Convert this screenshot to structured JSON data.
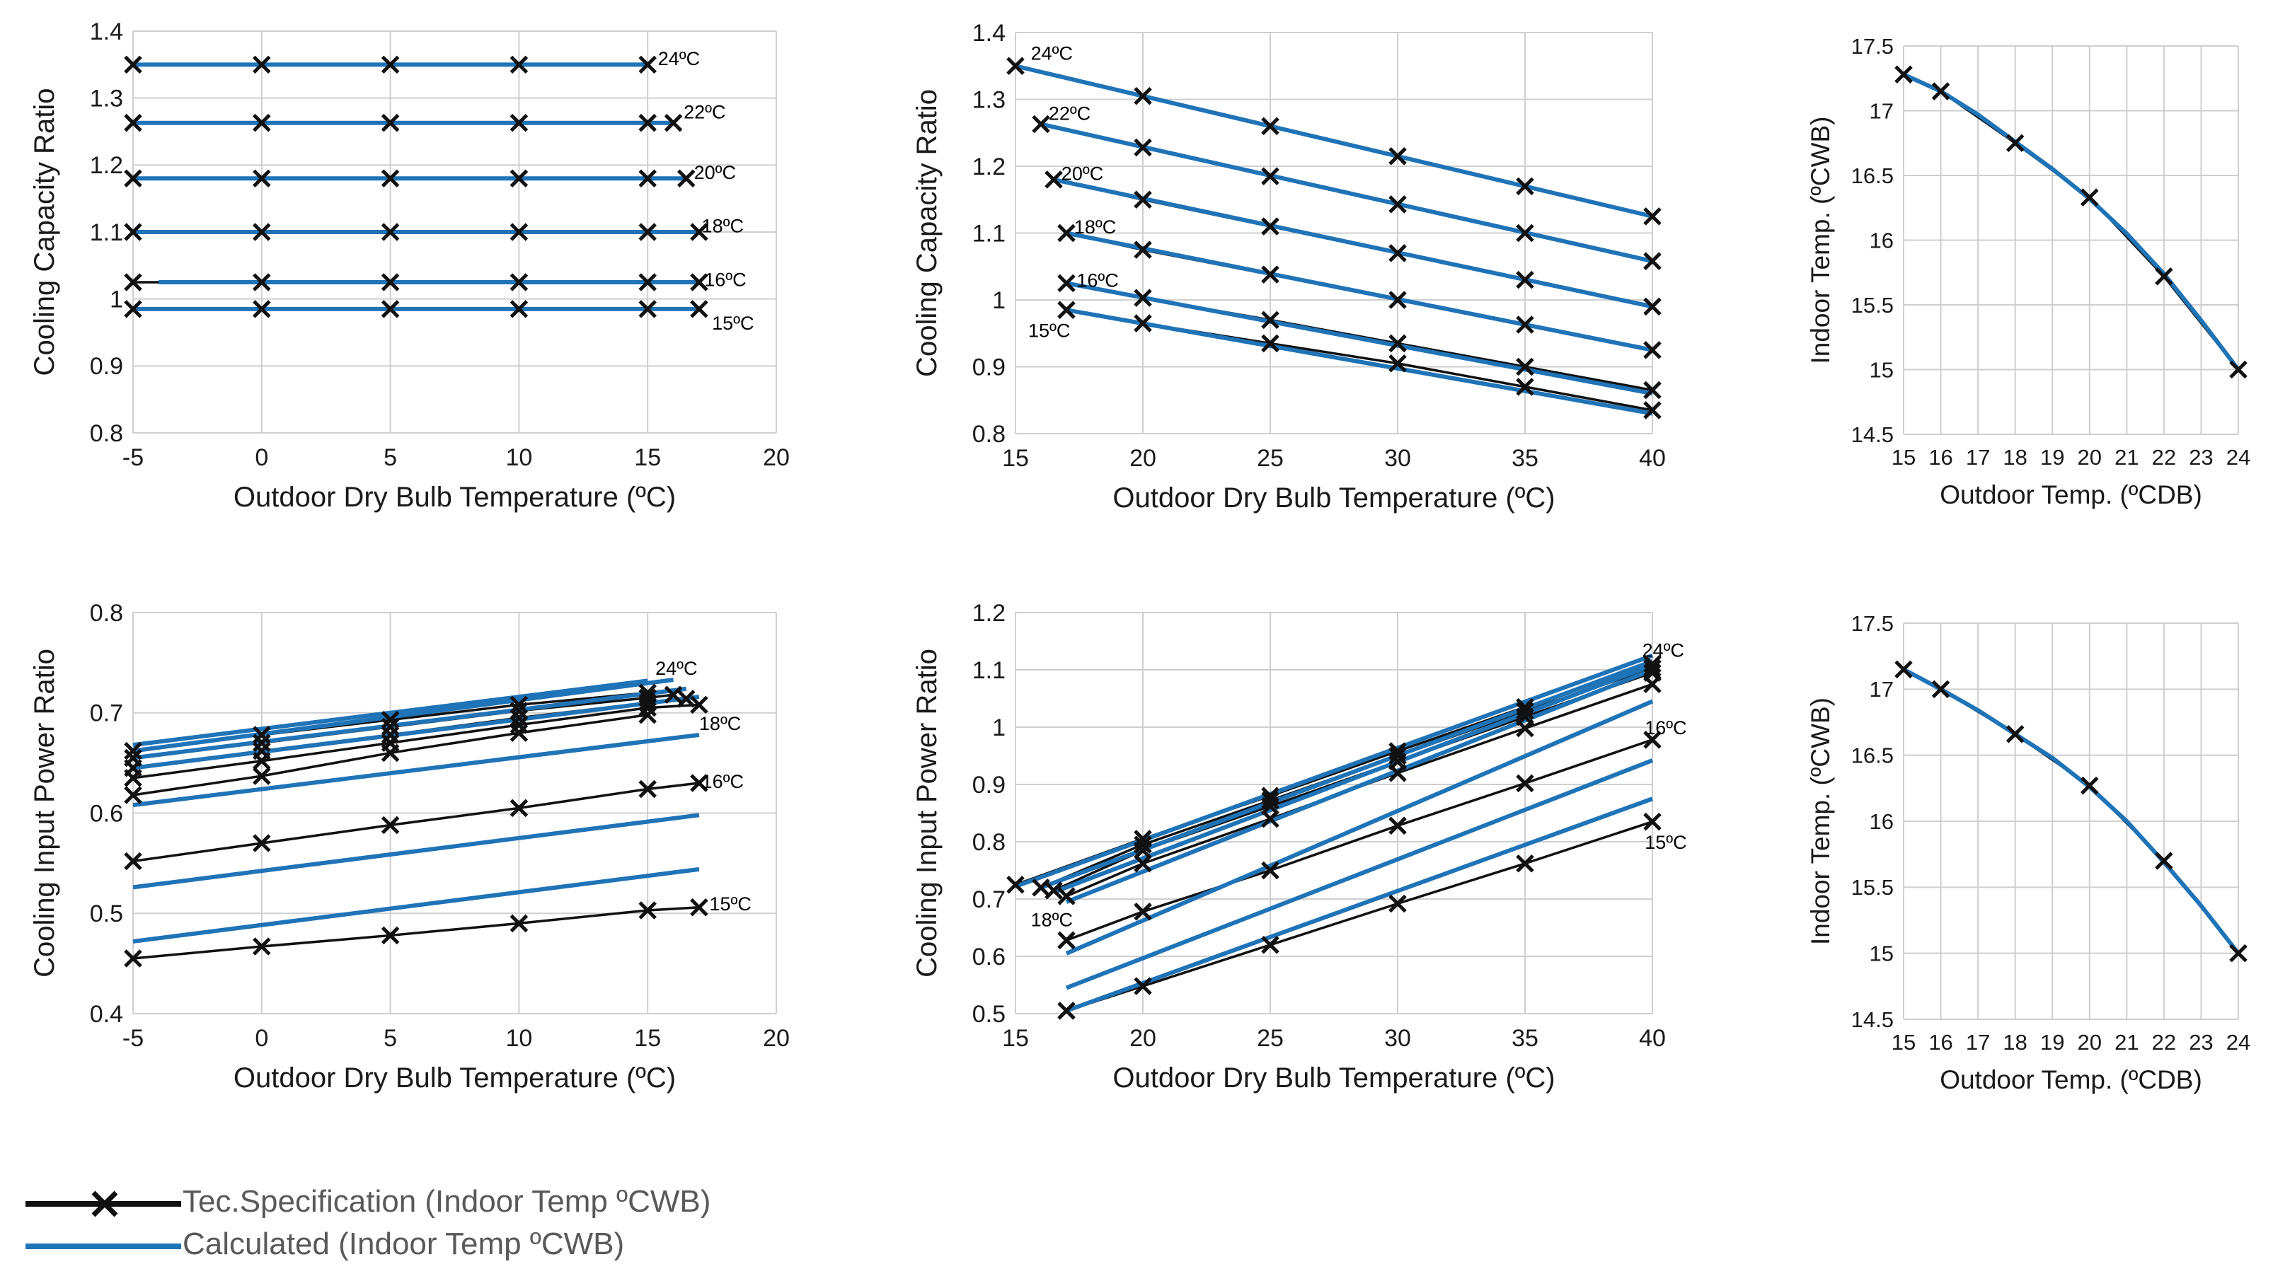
{
  "colors": {
    "spec": "#111111",
    "calc": "#1f73b7",
    "grid": "#cfcfcf"
  },
  "legend": {
    "spec_label": "Tec.Specification (Indoor Temp ºCWB)",
    "calc_label": "Calculated (Indoor Temp ºCWB)"
  },
  "chart_data": [
    {
      "id": "tl",
      "type": "line",
      "xlabel": "Outdoor Dry Bulb Temperature (ºC)",
      "ylabel": "Cooling Capacity Ratio",
      "xlim": [
        -5,
        20
      ],
      "ylim": [
        0.8,
        1.4
      ],
      "xticks": [
        -5,
        0,
        5,
        10,
        15,
        20
      ],
      "xtick_labels": [
        "-5",
        "0",
        "5",
        "10",
        "15",
        "20"
      ],
      "yticks": [
        0.8,
        0.9,
        1,
        1.1,
        1.2,
        1.3,
        1.4
      ],
      "ytick_labels": [
        "0.8",
        "0.9",
        "1",
        "1.1",
        "1.2",
        "1.3",
        "1.4"
      ],
      "grid": true,
      "spec_series": [
        {
          "x": [
            -5,
            0,
            5,
            10,
            15
          ],
          "y": [
            1.35,
            1.35,
            1.35,
            1.35,
            1.35
          ]
        },
        {
          "x": [
            -5,
            0,
            5,
            10,
            15,
            16
          ],
          "y": [
            1.263,
            1.263,
            1.263,
            1.263,
            1.263,
            1.263
          ]
        },
        {
          "x": [
            -5,
            0,
            5,
            10,
            15,
            16.5
          ],
          "y": [
            1.18,
            1.18,
            1.18,
            1.18,
            1.18,
            1.18
          ]
        },
        {
          "x": [
            -5,
            0,
            5,
            10,
            15,
            17
          ],
          "y": [
            1.1,
            1.1,
            1.1,
            1.1,
            1.1,
            1.1
          ]
        },
        {
          "x": [
            -5,
            0,
            5,
            10,
            15,
            17
          ],
          "y": [
            1.025,
            1.025,
            1.025,
            1.025,
            1.025,
            1.025
          ]
        },
        {
          "x": [
            -5,
            0,
            5,
            10,
            15,
            17
          ],
          "y": [
            0.985,
            0.985,
            0.985,
            0.985,
            0.985,
            0.985
          ]
        }
      ],
      "calc_series": [
        {
          "x": [
            -5,
            15
          ],
          "y": [
            1.35,
            1.35
          ]
        },
        {
          "x": [
            -5,
            16
          ],
          "y": [
            1.263,
            1.263
          ]
        },
        {
          "x": [
            -5,
            16.5
          ],
          "y": [
            1.18,
            1.18
          ]
        },
        {
          "x": [
            -5,
            17
          ],
          "y": [
            1.1,
            1.1
          ]
        },
        {
          "x": [
            -4,
            17
          ],
          "y": [
            1.025,
            1.025
          ]
        },
        {
          "x": [
            -5,
            17
          ],
          "y": [
            0.985,
            0.985
          ]
        }
      ],
      "annotations": [
        {
          "text": "24ºC",
          "x": 15.4,
          "y": 1.36
        },
        {
          "text": "22ºC",
          "x": 16.4,
          "y": 1.28
        },
        {
          "text": "20ºC",
          "x": 16.8,
          "y": 1.19
        },
        {
          "text": "18ºC",
          "x": 17.1,
          "y": 1.11
        },
        {
          "text": "16ºC",
          "x": 17.2,
          "y": 1.03
        },
        {
          "text": "15ºC",
          "x": 17.5,
          "y": 0.965
        }
      ]
    },
    {
      "id": "tm",
      "type": "line",
      "xlabel": "Outdoor Dry Bulb Temperature (ºC)",
      "ylabel": "Cooling Capacity Ratio",
      "xlim": [
        15,
        40
      ],
      "ylim": [
        0.8,
        1.4
      ],
      "xticks": [
        15,
        20,
        25,
        30,
        35,
        40
      ],
      "xtick_labels": [
        "15",
        "20",
        "25",
        "30",
        "35",
        "40"
      ],
      "yticks": [
        0.8,
        0.9,
        1,
        1.1,
        1.2,
        1.3,
        1.4
      ],
      "ytick_labels": [
        "0.8",
        "0.9",
        "1",
        "1.1",
        "1.2",
        "1.3",
        "1.4"
      ],
      "grid": true,
      "spec_series": [
        {
          "x": [
            15,
            20,
            25,
            30,
            35,
            40
          ],
          "y": [
            1.35,
            1.305,
            1.26,
            1.215,
            1.17,
            1.125
          ]
        },
        {
          "x": [
            16,
            20,
            25,
            30,
            35,
            40
          ],
          "y": [
            1.263,
            1.228,
            1.185,
            1.143,
            1.1,
            1.058
          ]
        },
        {
          "x": [
            16.5,
            20,
            25,
            30,
            35,
            40
          ],
          "y": [
            1.18,
            1.15,
            1.11,
            1.07,
            1.03,
            0.99
          ]
        },
        {
          "x": [
            17,
            20,
            25,
            30,
            35,
            40
          ],
          "y": [
            1.1,
            1.075,
            1.038,
            1.0,
            0.963,
            0.925
          ]
        },
        {
          "x": [
            17,
            20,
            25,
            30,
            35,
            40
          ],
          "y": [
            1.025,
            1.003,
            0.97,
            0.935,
            0.9,
            0.865
          ]
        },
        {
          "x": [
            17,
            20,
            25,
            30,
            35,
            40
          ],
          "y": [
            0.985,
            0.965,
            0.935,
            0.905,
            0.87,
            0.835
          ]
        }
      ],
      "calc_series": [
        {
          "x": [
            15,
            40
          ],
          "y": [
            1.35,
            1.125
          ]
        },
        {
          "x": [
            16,
            40
          ],
          "y": [
            1.263,
            1.058
          ]
        },
        {
          "x": [
            16.5,
            40
          ],
          "y": [
            1.18,
            0.99
          ]
        },
        {
          "x": [
            17,
            40
          ],
          "y": [
            1.1,
            0.925
          ]
        },
        {
          "x": [
            17,
            40
          ],
          "y": [
            1.025,
            0.86
          ]
        },
        {
          "x": [
            17,
            40
          ],
          "y": [
            0.985,
            0.83
          ]
        }
      ],
      "annotations": [
        {
          "text": "24ºC",
          "x": 15.6,
          "y": 1.37
        },
        {
          "text": "22ºC",
          "x": 16.3,
          "y": 1.28
        },
        {
          "text": "20ºC",
          "x": 16.8,
          "y": 1.19
        },
        {
          "text": "18ºC",
          "x": 17.3,
          "y": 1.11
        },
        {
          "text": "16ºC",
          "x": 17.4,
          "y": 1.03
        },
        {
          "text": "15ºC",
          "x": 15.5,
          "y": 0.955
        }
      ]
    },
    {
      "id": "tr",
      "type": "line",
      "xlabel": "Outdoor Temp. (ºCDB)",
      "ylabel": "Indoor Temp. (ºCWB)",
      "xscale": "category",
      "xlim": [
        15,
        24
      ],
      "ylim": [
        14.5,
        17.5
      ],
      "xticks": [
        15,
        16,
        17,
        18,
        19,
        20,
        21,
        22,
        23,
        24
      ],
      "xtick_labels": [
        "15",
        "16",
        "17",
        "18",
        "19",
        "20",
        "21",
        "22",
        "23",
        "24"
      ],
      "yticks": [
        14.5,
        15,
        15.5,
        16,
        16.5,
        17,
        17.5
      ],
      "ytick_labels": [
        "14.5",
        "15",
        "15.5",
        "16",
        "16.5",
        "17",
        "17.5"
      ],
      "grid": true,
      "spec_series": [
        {
          "x": [
            15,
            16,
            18,
            20,
            22,
            24
          ],
          "y": [
            17.28,
            17.15,
            16.75,
            16.33,
            15.72,
            15.0
          ]
        }
      ],
      "calc_series": [
        {
          "x": [
            15,
            16,
            17,
            18,
            19,
            20,
            21,
            22,
            23,
            24
          ],
          "y": [
            17.28,
            17.15,
            16.97,
            16.76,
            16.55,
            16.32,
            16.05,
            15.74,
            15.38,
            15.0
          ]
        }
      ],
      "annotations": []
    },
    {
      "id": "bl",
      "type": "line",
      "xlabel": "Outdoor Dry Bulb Temperature (ºC)",
      "ylabel": "Cooling Input Power Ratio",
      "xlim": [
        -5,
        20
      ],
      "ylim": [
        0.4,
        0.8
      ],
      "xticks": [
        -5,
        0,
        5,
        10,
        15,
        20
      ],
      "xtick_labels": [
        "-5",
        "0",
        "5",
        "10",
        "15",
        "20"
      ],
      "yticks": [
        0.4,
        0.5,
        0.6,
        0.7,
        0.8
      ],
      "ytick_labels": [
        "0.4",
        "0.5",
        "0.6",
        "0.7",
        "0.8"
      ],
      "grid": true,
      "spec_series": [
        {
          "x": [
            -5,
            0,
            5,
            10,
            15
          ],
          "y": [
            0.662,
            0.678,
            0.693,
            0.708,
            0.72
          ]
        },
        {
          "x": [
            -5,
            0,
            5,
            10,
            15,
            16
          ],
          "y": [
            0.655,
            0.67,
            0.686,
            0.702,
            0.715,
            0.718
          ]
        },
        {
          "x": [
            -5,
            0,
            5,
            10,
            15,
            16.5
          ],
          "y": [
            0.645,
            0.662,
            0.678,
            0.695,
            0.71,
            0.714
          ]
        },
        {
          "x": [
            -5,
            0,
            5,
            10,
            15,
            17
          ],
          "y": [
            0.635,
            0.652,
            0.67,
            0.688,
            0.705,
            0.708
          ]
        },
        {
          "x": [
            -5,
            0,
            5,
            10,
            15
          ],
          "y": [
            0.618,
            0.637,
            0.66,
            0.68,
            0.698
          ]
        },
        {
          "x": [
            -5,
            0,
            5,
            10,
            15,
            17
          ],
          "y": [
            0.552,
            0.57,
            0.588,
            0.605,
            0.624,
            0.63
          ]
        },
        {
          "x": [
            -5,
            0,
            5,
            10,
            15,
            17
          ],
          "y": [
            0.455,
            0.467,
            0.478,
            0.49,
            0.503,
            0.506
          ]
        }
      ],
      "calc_series": [
        {
          "x": [
            -5,
            15
          ],
          "y": [
            0.668,
            0.732
          ]
        },
        {
          "x": [
            -5,
            16
          ],
          "y": [
            0.662,
            0.733
          ]
        },
        {
          "x": [
            -5,
            16.5
          ],
          "y": [
            0.655,
            0.724
          ]
        },
        {
          "x": [
            -5,
            17
          ],
          "y": [
            0.645,
            0.716
          ]
        },
        {
          "x": [
            -5,
            17
          ],
          "y": [
            0.608,
            0.678
          ]
        },
        {
          "x": [
            -5,
            17
          ],
          "y": [
            0.526,
            0.598
          ]
        },
        {
          "x": [
            -5,
            17
          ],
          "y": [
            0.472,
            0.544
          ]
        }
      ],
      "annotations": [
        {
          "text": "24ºC",
          "x": 15.3,
          "y": 0.745
        },
        {
          "text": "18ºC",
          "x": 17.0,
          "y": 0.69
        },
        {
          "text": "16ºC",
          "x": 17.1,
          "y": 0.632
        },
        {
          "text": "15ºC",
          "x": 17.4,
          "y": 0.51
        }
      ]
    },
    {
      "id": "bm",
      "type": "line",
      "xlabel": "Outdoor Dry Bulb Temperature (ºC)",
      "ylabel": "Cooling Input Power Ratio",
      "xlim": [
        15,
        40
      ],
      "ylim": [
        0.5,
        1.2
      ],
      "xticks": [
        15,
        20,
        25,
        30,
        35,
        40
      ],
      "xtick_labels": [
        "15",
        "20",
        "25",
        "30",
        "35",
        "40"
      ],
      "yticks": [
        0.5,
        0.6,
        0.7,
        0.8,
        0.9,
        1,
        1.1,
        1.2
      ],
      "ytick_labels": [
        "0.5",
        "0.6",
        "0.7",
        "0.8",
        "0.9",
        "1",
        "1.1",
        "1.2"
      ],
      "grid": true,
      "spec_series": [
        {
          "x": [
            15,
            20,
            25,
            30,
            35,
            40
          ],
          "y": [
            0.725,
            0.805,
            0.88,
            0.958,
            1.035,
            1.11
          ]
        },
        {
          "x": [
            16,
            20,
            25,
            30,
            35,
            40
          ],
          "y": [
            0.72,
            0.795,
            0.872,
            0.95,
            1.028,
            1.103
          ]
        },
        {
          "x": [
            16.5,
            20,
            25,
            30,
            35,
            40
          ],
          "y": [
            0.715,
            0.785,
            0.862,
            0.94,
            1.018,
            1.095
          ]
        },
        {
          "x": [
            17,
            20,
            25,
            30,
            35,
            40
          ],
          "y": [
            0.705,
            0.762,
            0.84,
            0.92,
            0.998,
            1.075
          ]
        },
        {
          "x": [
            17,
            20,
            25,
            30,
            35,
            40
          ],
          "y": [
            0.628,
            0.678,
            0.75,
            0.828,
            0.902,
            0.978
          ]
        },
        {
          "x": [
            17,
            20,
            25,
            30,
            35,
            40
          ],
          "y": [
            0.505,
            0.548,
            0.62,
            0.692,
            0.762,
            0.835
          ]
        }
      ],
      "calc_series": [
        {
          "x": [
            15,
            40
          ],
          "y": [
            0.722,
            1.125
          ]
        },
        {
          "x": [
            16,
            40
          ],
          "y": [
            0.72,
            1.115
          ]
        },
        {
          "x": [
            16.5,
            40
          ],
          "y": [
            0.712,
            1.108
          ]
        },
        {
          "x": [
            17,
            40
          ],
          "y": [
            0.695,
            1.1
          ]
        },
        {
          "x": [
            17,
            40
          ],
          "y": [
            0.605,
            1.045
          ]
        },
        {
          "x": [
            17,
            40
          ],
          "y": [
            0.545,
            0.942
          ]
        },
        {
          "x": [
            17,
            40
          ],
          "y": [
            0.505,
            0.875
          ]
        }
      ],
      "annotations": [
        {
          "text": "24ºC",
          "x": 39.6,
          "y": 1.135
        },
        {
          "text": "16ºC",
          "x": 39.7,
          "y": 1.0
        },
        {
          "text": "18ºC",
          "x": 15.6,
          "y": 0.665
        },
        {
          "text": "15ºC",
          "x": 39.7,
          "y": 0.8
        }
      ]
    },
    {
      "id": "br",
      "type": "line",
      "xlabel": "Outdoor Temp. (ºCDB)",
      "ylabel": "Indoor Temp. (ºCWB)",
      "xscale": "category",
      "xlim": [
        15,
        24
      ],
      "ylim": [
        14.5,
        17.5
      ],
      "xticks": [
        15,
        16,
        17,
        18,
        19,
        20,
        21,
        22,
        23,
        24
      ],
      "xtick_labels": [
        "15",
        "16",
        "17",
        "18",
        "19",
        "20",
        "21",
        "22",
        "23",
        "24"
      ],
      "yticks": [
        14.5,
        15,
        15.5,
        16,
        16.5,
        17,
        17.5
      ],
      "ytick_labels": [
        "14.5",
        "15",
        "15.5",
        "16",
        "16.5",
        "17",
        "17.5"
      ],
      "grid": true,
      "spec_series": [
        {
          "x": [
            15,
            16,
            18,
            20,
            22,
            24
          ],
          "y": [
            17.15,
            17.0,
            16.66,
            16.27,
            15.7,
            15.0
          ]
        }
      ],
      "calc_series": [
        {
          "x": [
            15,
            16,
            17,
            18,
            19,
            20,
            21,
            22,
            23,
            24
          ],
          "y": [
            17.15,
            17.0,
            16.84,
            16.66,
            16.48,
            16.26,
            16.0,
            15.69,
            15.36,
            15.0
          ]
        }
      ],
      "annotations": []
    }
  ]
}
